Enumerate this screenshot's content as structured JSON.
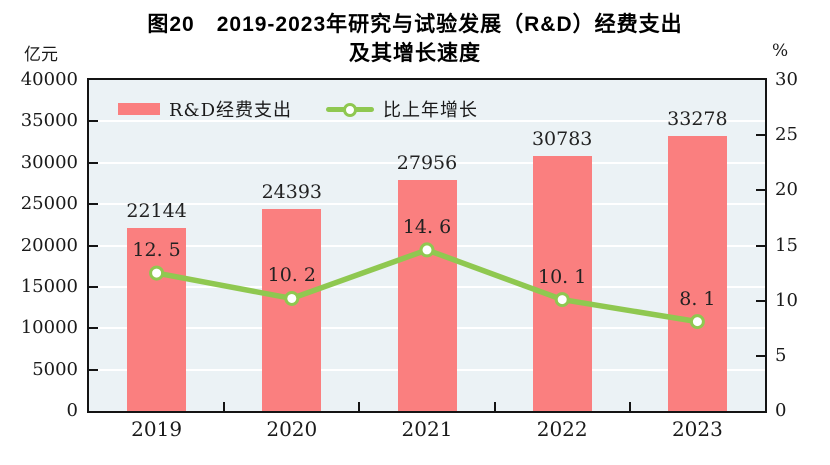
{
  "title": {
    "line1": "图20　2019-2023年研究与试验发展（R&D）经费支出",
    "line2": "及其增长速度"
  },
  "axes": {
    "left_unit": "亿元",
    "right_unit": "%",
    "left_tick_labels": [
      "0",
      "5000",
      "10000",
      "15000",
      "20000",
      "25000",
      "30000",
      "35000",
      "40000"
    ],
    "right_tick_labels": [
      "0",
      "5",
      "10",
      "15",
      "20",
      "25",
      "30"
    ]
  },
  "legend": [
    {
      "label": "R&D经费支出"
    },
    {
      "label": "比上年增长"
    }
  ],
  "chart_data": {
    "type": "bar+line",
    "categories": [
      "2019",
      "2020",
      "2021",
      "2022",
      "2023"
    ],
    "series": [
      {
        "name": "R&D经费支出",
        "type": "bar",
        "axis": "left",
        "values": [
          22144,
          24393,
          27956,
          30783,
          33278
        ],
        "labels": [
          "22144",
          "24393",
          "27956",
          "30783",
          "33278"
        ],
        "color": "#FA7F7F"
      },
      {
        "name": "比上年增长",
        "type": "line",
        "axis": "right",
        "values": [
          12.5,
          10.2,
          14.6,
          10.1,
          8.1
        ],
        "labels": [
          "12. 5",
          "10. 2",
          "14. 6",
          "10. 1",
          "8. 1"
        ],
        "color": "#8FC850",
        "marker": {
          "fill": "#FFFFFF",
          "stroke": "#8FC850"
        }
      }
    ],
    "left_axis": {
      "min": 0,
      "max": 40000,
      "step": 5000,
      "unit": "亿元"
    },
    "right_axis": {
      "min": 0,
      "max": 30,
      "step": 5,
      "unit": "%"
    },
    "grid": true,
    "grid_color": "#FFFFFF",
    "plot_background": "#EBF2F5",
    "axis_color": "#141414",
    "legend_position": "top-left-inside"
  }
}
